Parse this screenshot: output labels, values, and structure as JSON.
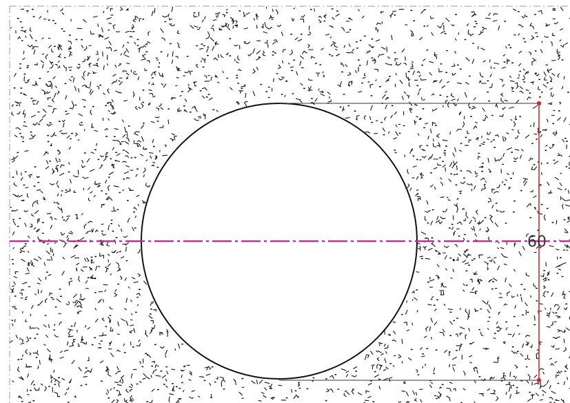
{
  "drawing": {
    "dimension_label": "60",
    "colors": {
      "background": "#ffffff",
      "stipple": "#111111",
      "border": "#9a9a9a",
      "outline": "#111111",
      "centerline": "#e0198f",
      "dimension": "#d42a2a",
      "extension": "#333333"
    }
  }
}
